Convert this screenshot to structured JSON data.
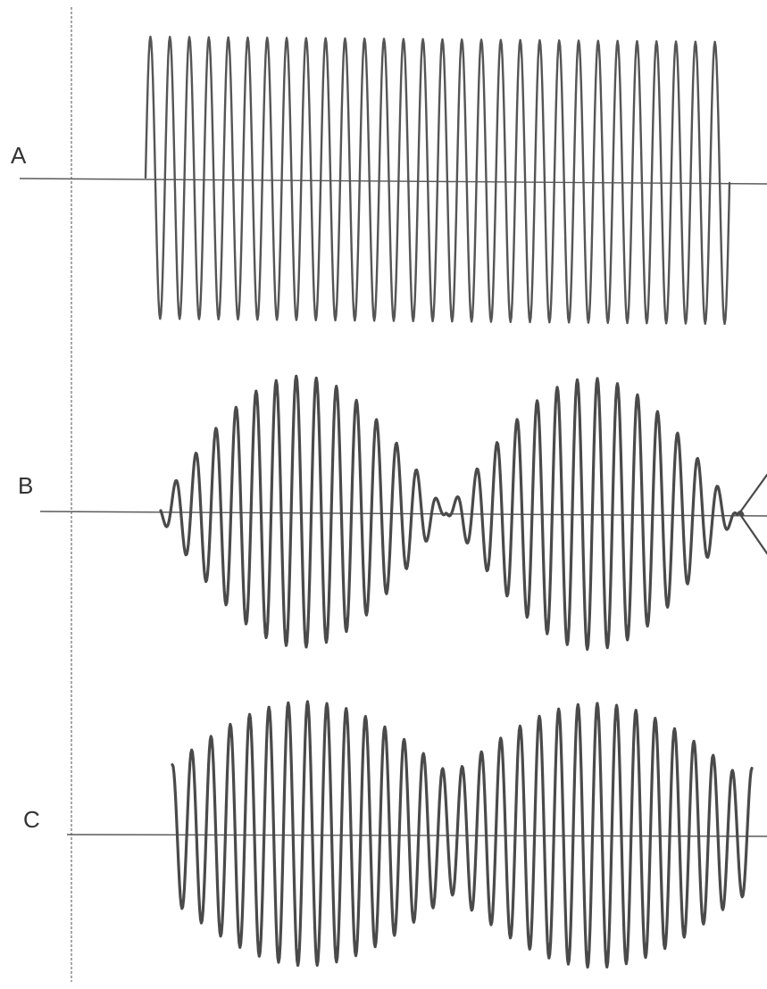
{
  "colors": {
    "ink": "#555555",
    "ink_dark": "#4a4a4a",
    "baseline": "#5a5a5a",
    "background": "#ffffff"
  },
  "traces": [
    {
      "id": "A",
      "label": "A",
      "kind": "constant-amplitude oscillation",
      "cycles": 30,
      "amplitude_envelope": "constant"
    },
    {
      "id": "B",
      "label": "B",
      "kind": "beats, full modulation",
      "cycles": 29,
      "beats": 2,
      "envelope_minimum": 0.0
    },
    {
      "id": "C",
      "label": "C",
      "kind": "beats, partial modulation",
      "cycles": 30,
      "beats": 2,
      "envelope_minimum": 0.45
    }
  ]
}
